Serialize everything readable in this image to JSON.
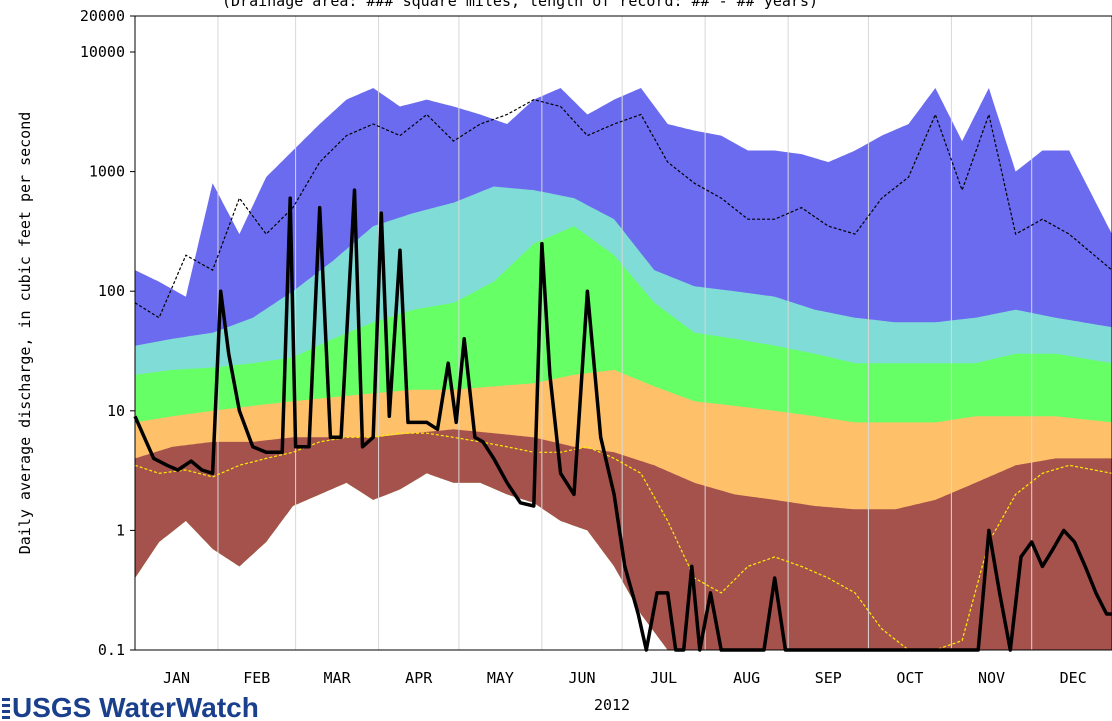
{
  "chart_data": {
    "type": "area",
    "title": "(Drainage area: ### square miles, length of record: ## - ## years)",
    "xlabel": "2012",
    "ylabel": "Daily average discharge, in cubic feet per second",
    "yscale": "log",
    "ylim": [
      0.1,
      20000
    ],
    "y_ticks": [
      "0.1",
      "1",
      "10",
      "100",
      "1000",
      "10000",
      "20000"
    ],
    "y_tick_values": [
      0.1,
      1,
      10,
      100,
      1000,
      10000,
      20000
    ],
    "x_range": [
      1,
      366
    ],
    "month_labels": [
      "JAN",
      "FEB",
      "MAR",
      "APR",
      "MAY",
      "JUN",
      "JUL",
      "AUG",
      "SEP",
      "OCT",
      "NOV",
      "DEC"
    ],
    "month_boundaries": [
      32,
      61,
      92,
      122,
      153,
      183,
      214,
      245,
      275,
      306,
      336
    ],
    "bands_note": "percentile bands of historical daily discharge",
    "colors": {
      "max_band": "#6b6bf0",
      "p90_band": "#80dcd6",
      "p75_band": "#66ff66",
      "p25_band": "#ffc06a",
      "p10_band": "#a5524c",
      "mean_line": "#000000",
      "median_line": "#ffee00",
      "observed_line": "#000000",
      "grid": "#d8d8d8"
    },
    "series": [
      {
        "role": "max",
        "x": [
          1,
          10,
          20,
          30,
          40,
          50,
          60,
          70,
          80,
          90,
          100,
          110,
          120,
          130,
          140,
          150,
          160,
          170,
          180,
          190,
          200,
          210,
          220,
          230,
          240,
          250,
          260,
          270,
          280,
          290,
          300,
          310,
          320,
          330,
          340,
          350,
          366
        ],
        "values": [
          150,
          120,
          90,
          800,
          300,
          900,
          1500,
          2500,
          4000,
          5000,
          3500,
          4000,
          3500,
          3000,
          2500,
          4000,
          5000,
          3000,
          4000,
          5000,
          2500,
          2200,
          2000,
          1500,
          1500,
          1400,
          1200,
          1500,
          2000,
          2500,
          5000,
          1800,
          5000,
          1000,
          1500,
          1500,
          300
        ]
      },
      {
        "role": "p90",
        "x": [
          1,
          15,
          30,
          45,
          60,
          75,
          90,
          105,
          120,
          135,
          150,
          165,
          180,
          195,
          210,
          225,
          240,
          255,
          270,
          285,
          300,
          315,
          330,
          345,
          366
        ],
        "values": [
          35,
          40,
          45,
          60,
          100,
          180,
          350,
          450,
          550,
          750,
          700,
          600,
          400,
          150,
          110,
          100,
          90,
          70,
          60,
          55,
          55,
          60,
          70,
          60,
          50
        ]
      },
      {
        "role": "p75",
        "x": [
          1,
          15,
          30,
          45,
          60,
          75,
          90,
          105,
          120,
          135,
          150,
          165,
          180,
          195,
          210,
          225,
          240,
          255,
          270,
          285,
          300,
          315,
          330,
          345,
          366
        ],
        "values": [
          20,
          22,
          23,
          25,
          28,
          40,
          55,
          70,
          80,
          120,
          250,
          350,
          200,
          80,
          45,
          40,
          35,
          30,
          25,
          25,
          25,
          25,
          30,
          30,
          25
        ]
      },
      {
        "role": "p25",
        "x": [
          1,
          15,
          30,
          45,
          60,
          75,
          90,
          105,
          120,
          135,
          150,
          165,
          180,
          195,
          210,
          225,
          240,
          255,
          270,
          285,
          300,
          315,
          330,
          345,
          366
        ],
        "values": [
          8,
          9,
          10,
          11,
          12,
          13,
          14,
          15,
          15,
          16,
          17,
          20,
          22,
          16,
          12,
          11,
          10,
          9,
          8,
          8,
          8,
          9,
          9,
          9,
          8
        ]
      },
      {
        "role": "p10",
        "x": [
          1,
          15,
          30,
          45,
          60,
          75,
          90,
          105,
          120,
          135,
          150,
          165,
          180,
          195,
          210,
          225,
          240,
          255,
          270,
          285,
          300,
          315,
          330,
          345,
          366
        ],
        "values": [
          4,
          5,
          5.5,
          5.5,
          6,
          6,
          6,
          6.5,
          7,
          6.5,
          6,
          5,
          4.5,
          3.5,
          2.5,
          2,
          1.8,
          1.6,
          1.5,
          1.5,
          1.8,
          2.5,
          3.5,
          4,
          4
        ]
      },
      {
        "role": "min",
        "x": [
          1,
          10,
          20,
          30,
          40,
          50,
          60,
          70,
          80,
          90,
          100,
          110,
          120,
          130,
          140,
          150,
          160,
          170,
          180,
          190,
          200,
          210,
          220,
          230,
          366
        ],
        "values": [
          0.4,
          0.8,
          1.2,
          0.7,
          0.5,
          0.8,
          1.6,
          2,
          2.5,
          1.8,
          2.2,
          3,
          2.5,
          2.5,
          2,
          1.7,
          1.2,
          1,
          0.5,
          0.2,
          0.1,
          0.1,
          0.1,
          0.1,
          0.1
        ]
      },
      {
        "role": "mean",
        "x": [
          1,
          10,
          20,
          30,
          40,
          50,
          60,
          70,
          80,
          90,
          100,
          110,
          120,
          130,
          140,
          150,
          160,
          170,
          180,
          190,
          200,
          210,
          220,
          230,
          240,
          250,
          260,
          270,
          280,
          290,
          300,
          310,
          320,
          330,
          340,
          350,
          366
        ],
        "values": [
          80,
          60,
          200,
          150,
          600,
          300,
          500,
          1200,
          2000,
          2500,
          2000,
          3000,
          1800,
          2500,
          3000,
          4000,
          3500,
          2000,
          2500,
          3000,
          1200,
          800,
          600,
          400,
          400,
          500,
          350,
          300,
          600,
          900,
          3000,
          700,
          3000,
          300,
          400,
          300,
          150
        ]
      },
      {
        "role": "median",
        "x": [
          1,
          10,
          20,
          30,
          40,
          50,
          60,
          70,
          80,
          90,
          100,
          110,
          120,
          130,
          140,
          150,
          160,
          170,
          180,
          190,
          200,
          210,
          220,
          230,
          240,
          250,
          260,
          270,
          280,
          290,
          300,
          310,
          320,
          330,
          340,
          350,
          366
        ],
        "values": [
          3.5,
          3,
          3.2,
          2.8,
          3.5,
          4,
          4.5,
          5.5,
          6,
          6,
          6.5,
          6.5,
          6,
          5.5,
          5,
          4.5,
          4.5,
          5,
          4,
          3,
          1.2,
          0.4,
          0.3,
          0.5,
          0.6,
          0.5,
          0.4,
          0.3,
          0.15,
          0.1,
          0.1,
          0.12,
          0.8,
          2,
          3,
          3.5,
          3
        ]
      },
      {
        "role": "observed",
        "x": [
          1,
          8,
          13,
          17,
          22,
          26,
          30,
          33,
          36,
          40,
          45,
          50,
          56,
          59,
          61,
          66,
          70,
          74,
          78,
          83,
          86,
          90,
          93,
          96,
          100,
          103,
          106,
          110,
          114,
          118,
          121,
          124,
          128,
          131,
          135,
          140,
          145,
          150,
          153,
          156,
          160,
          165,
          170,
          175,
          180,
          184,
          189,
          192,
          196,
          200,
          203,
          206,
          209,
          212,
          216,
          220,
          224,
          228,
          232,
          236,
          240,
          244,
          248,
          252,
          256,
          260,
          266,
          272,
          278,
          284,
          290,
          296,
          300,
          304,
          310,
          316,
          320,
          324,
          328,
          332,
          336,
          340,
          344,
          348,
          352,
          356,
          360,
          364,
          366
        ],
        "values": [
          9,
          4,
          3.5,
          3.2,
          3.8,
          3.2,
          3,
          100,
          30,
          10,
          5,
          4.5,
          4.5,
          600,
          5,
          5,
          500,
          6,
          6,
          700,
          5,
          6,
          450,
          9,
          220,
          8,
          8,
          8,
          7,
          25,
          8,
          40,
          6,
          5.5,
          4,
          2.5,
          1.7,
          1.6,
          250,
          20,
          3,
          2,
          100,
          6,
          2,
          0.5,
          0.2,
          0.1,
          0.3,
          0.3,
          0.1,
          0.1,
          0.5,
          0.1,
          0.3,
          0.1,
          0.1,
          0.1,
          0.1,
          0.1,
          0.4,
          0.1,
          0.1,
          0.1,
          0.1,
          0.1,
          0.1,
          0.1,
          0.1,
          0.1,
          0.1,
          0.1,
          0.1,
          0.1,
          0.1,
          0.1,
          1,
          0.3,
          0.1,
          0.6,
          0.8,
          0.5,
          0.7,
          1,
          0.8,
          0.5,
          0.3,
          0.2,
          0.2
        ]
      }
    ]
  },
  "branding": {
    "logo_text": "USGS WaterWatch"
  }
}
